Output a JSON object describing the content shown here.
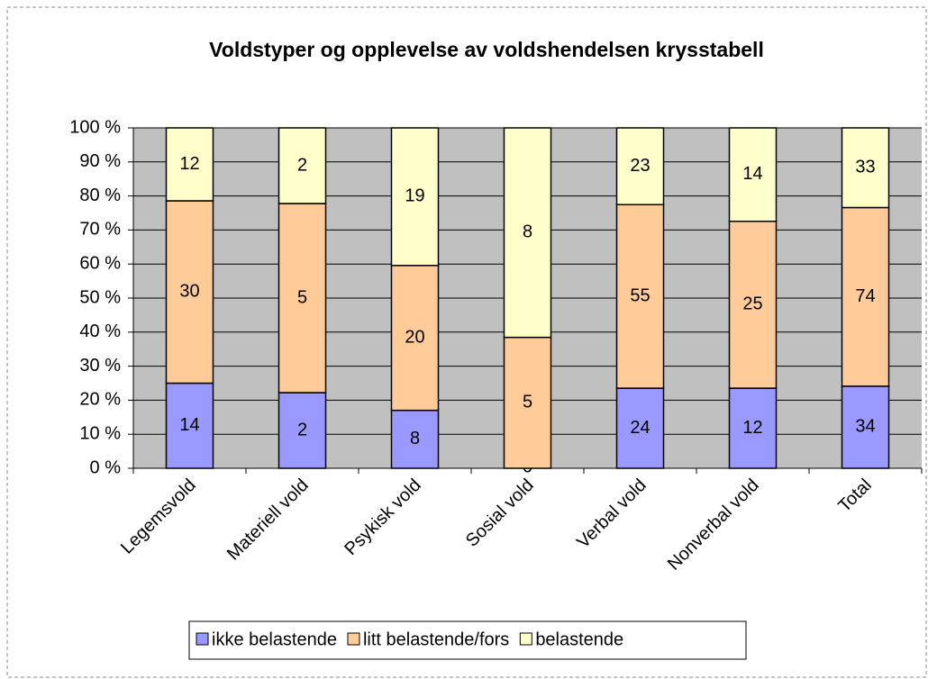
{
  "chart_data": {
    "type": "bar",
    "stacking": "percent",
    "title": "Voldstyper og opplevelse av voldshendelsen krysstabell",
    "categories": [
      "Legemsvold",
      "Materiell vold",
      "Psykisk vold",
      "Sosial vold",
      "Verbal vold",
      "Nonverbal vold",
      "Total"
    ],
    "series": [
      {
        "name": "ikke belastende",
        "color": "#9999ff",
        "values": [
          14,
          2,
          8,
          0,
          24,
          12,
          34
        ]
      },
      {
        "name": "litt belastende/fors",
        "color": "#ffcc99",
        "values": [
          30,
          5,
          20,
          5,
          55,
          25,
          74
        ]
      },
      {
        "name": "belastende",
        "color": "#ffffcc",
        "values": [
          12,
          2,
          19,
          8,
          23,
          14,
          33
        ]
      }
    ],
    "ylim": [
      0,
      100
    ],
    "yticks": [
      {
        "value": 0,
        "label": "0 %"
      },
      {
        "value": 10,
        "label": "10 %"
      },
      {
        "value": 20,
        "label": "20 %"
      },
      {
        "value": 30,
        "label": "30 %"
      },
      {
        "value": 40,
        "label": "40 %"
      },
      {
        "value": 50,
        "label": "50 %"
      },
      {
        "value": 60,
        "label": "60 %"
      },
      {
        "value": 70,
        "label": "70 %"
      },
      {
        "value": 80,
        "label": "80 %"
      },
      {
        "value": 90,
        "label": "90 %"
      },
      {
        "value": 100,
        "label": "100 %"
      }
    ],
    "grid": true,
    "legend": "bottom"
  }
}
